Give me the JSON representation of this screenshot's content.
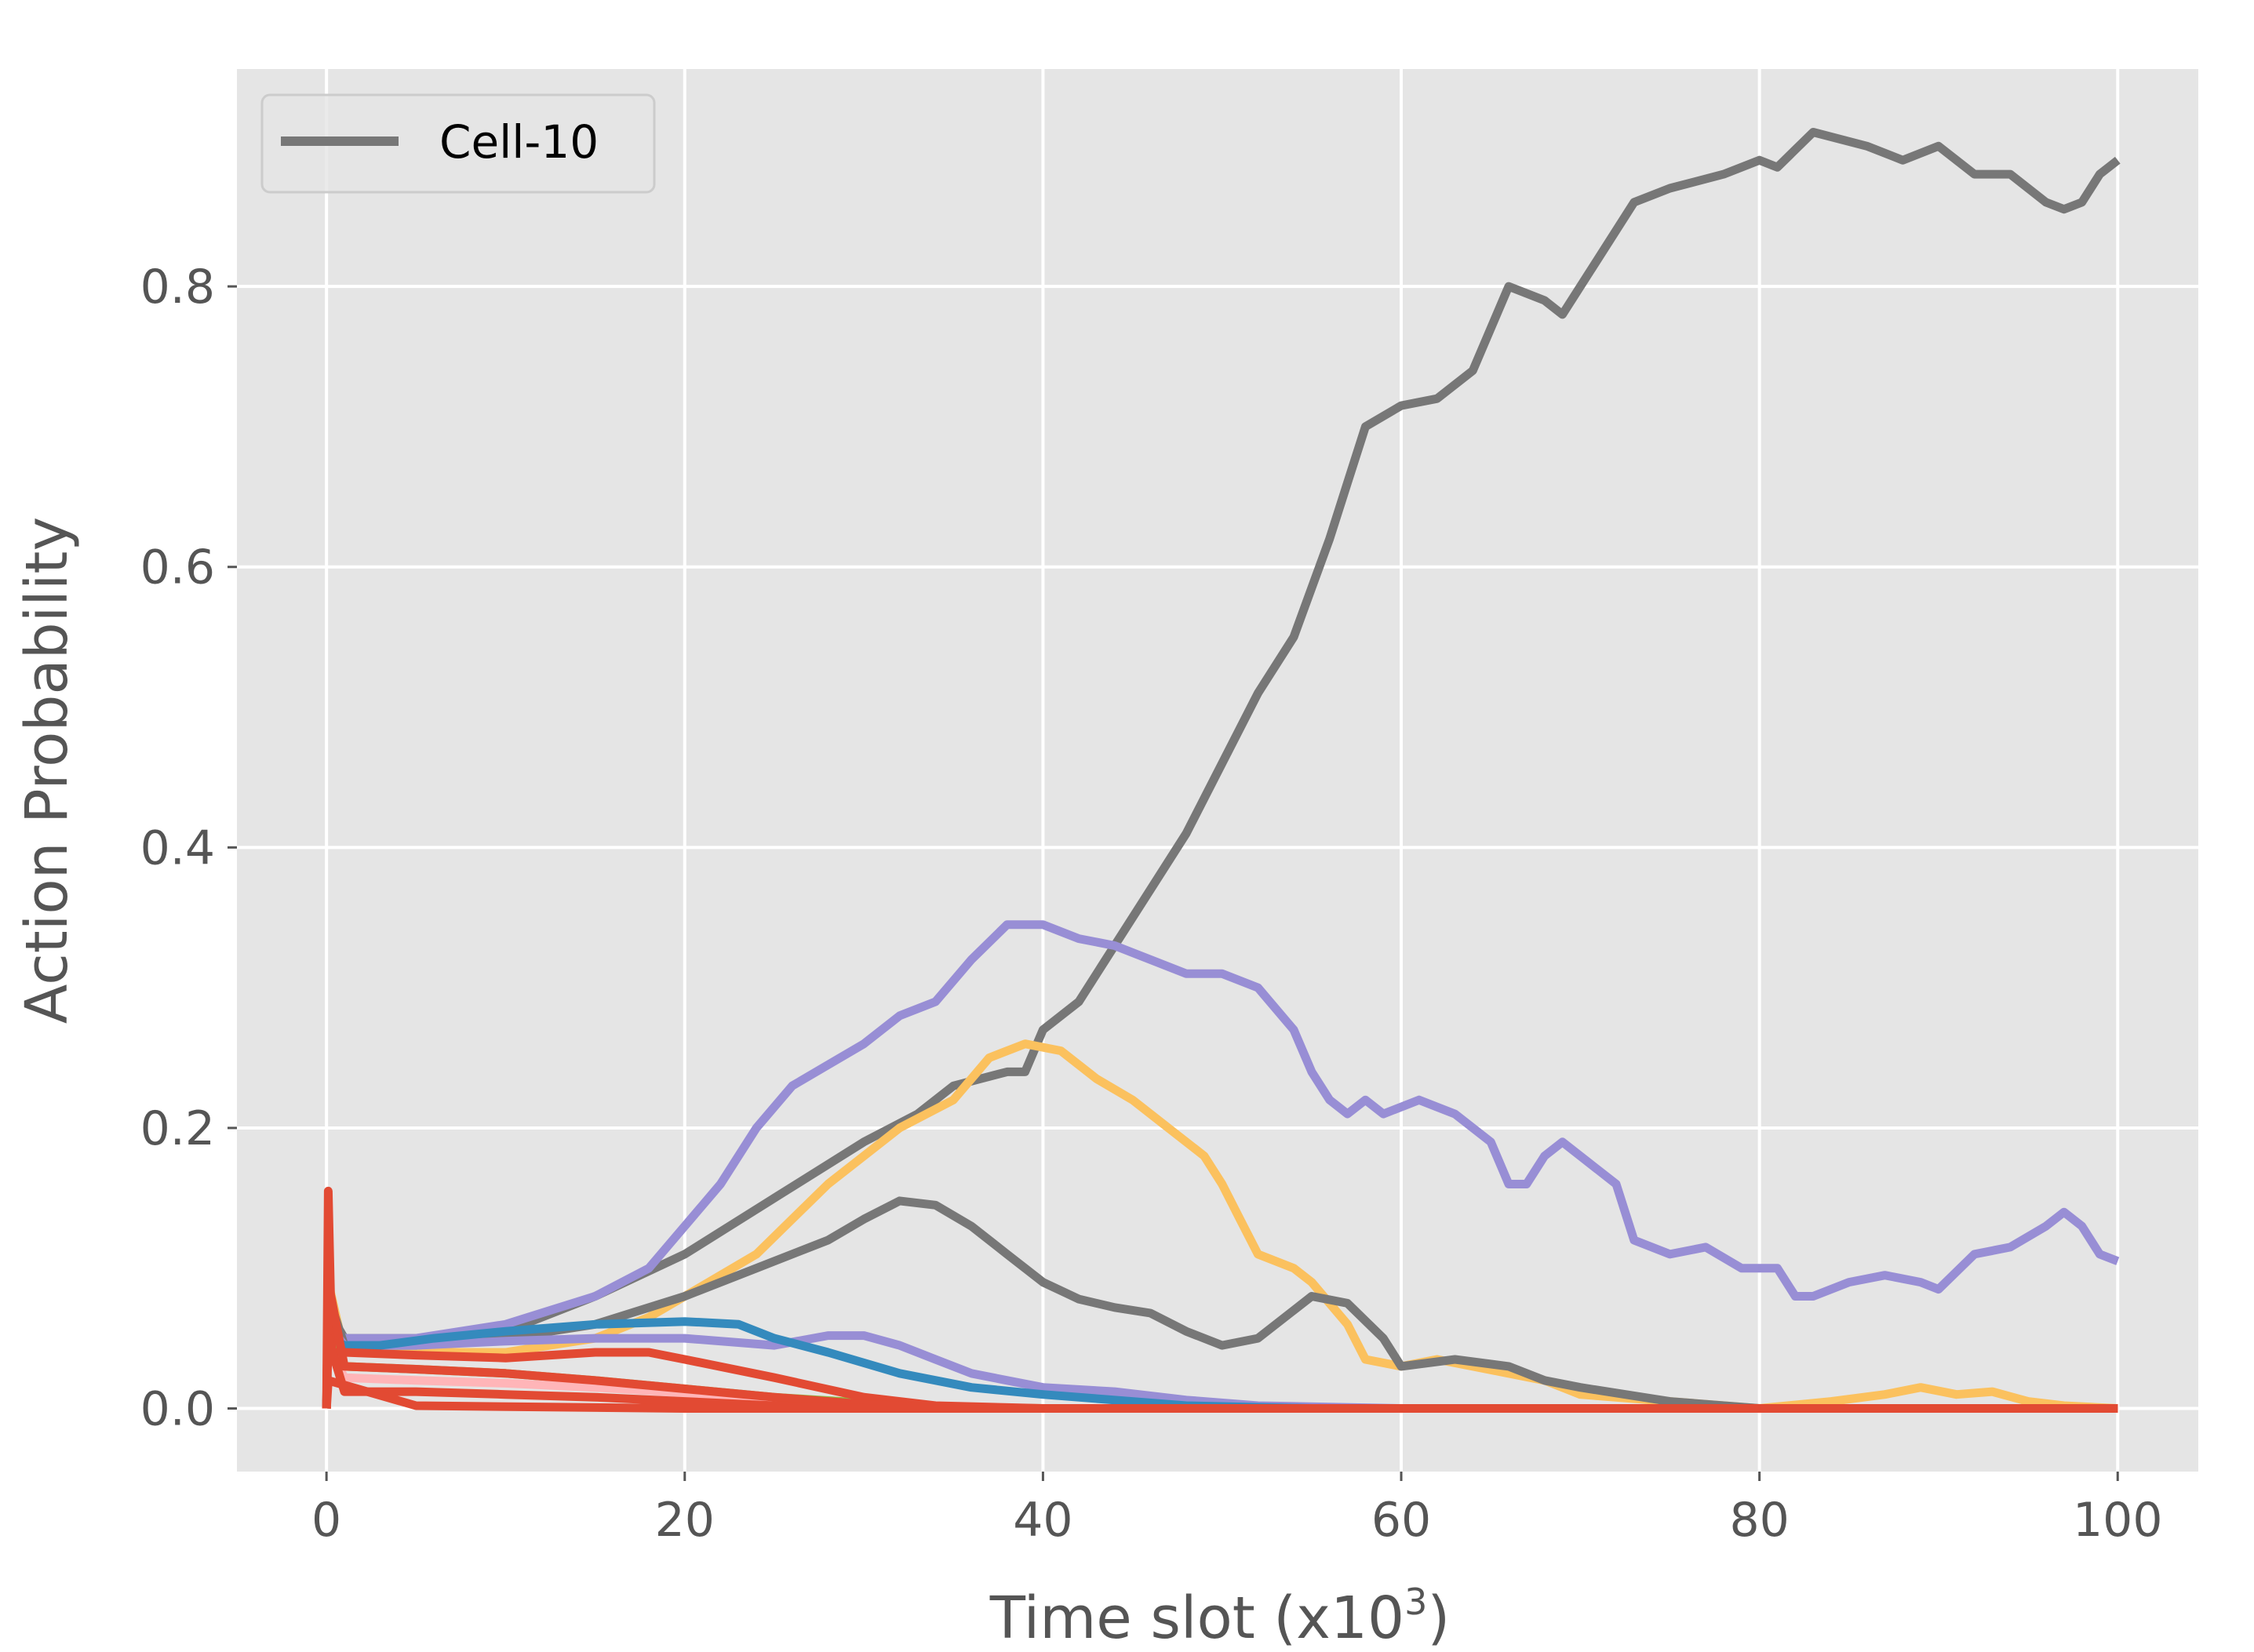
{
  "chart_data": {
    "type": "line",
    "xlabel": "Time slot (x10",
    "xlabel_superscript": "3",
    "xlabel_suffix": ")",
    "ylabel": "Action Probability",
    "xlim": [
      -5,
      104.5
    ],
    "ylim": [
      -0.045,
      0.955
    ],
    "x_ticks": [
      0,
      20,
      40,
      60,
      80,
      100
    ],
    "x_tick_labels": [
      "0",
      "20",
      "40",
      "60",
      "80",
      "100"
    ],
    "y_ticks": [
      0.0,
      0.2,
      0.4,
      0.6,
      0.8
    ],
    "y_tick_labels": [
      "0.0",
      "0.2",
      "0.4",
      "0.6",
      "0.8"
    ],
    "grid": true,
    "style": "ggplot",
    "background_color": "#e5e5e5",
    "grid_color": "#ffffff",
    "legend": {
      "placement": "top-left",
      "entries": [
        "Cell-10"
      ]
    },
    "series": [
      {
        "name": "Cell-10",
        "color": "#777777",
        "points": [
          [
            0,
            0.0
          ],
          [
            0.1,
            0.07
          ],
          [
            1,
            0.05
          ],
          [
            5,
            0.05
          ],
          [
            10,
            0.055
          ],
          [
            15,
            0.08
          ],
          [
            20,
            0.11
          ],
          [
            25,
            0.15
          ],
          [
            30,
            0.19
          ],
          [
            33,
            0.21
          ],
          [
            35,
            0.23
          ],
          [
            38,
            0.24
          ],
          [
            39,
            0.24
          ],
          [
            40,
            0.27
          ],
          [
            42,
            0.29
          ],
          [
            44,
            0.33
          ],
          [
            46,
            0.37
          ],
          [
            48,
            0.41
          ],
          [
            50,
            0.46
          ],
          [
            52,
            0.51
          ],
          [
            54,
            0.55
          ],
          [
            56,
            0.62
          ],
          [
            57,
            0.66
          ],
          [
            58,
            0.7
          ],
          [
            60,
            0.715
          ],
          [
            62,
            0.72
          ],
          [
            64,
            0.74
          ],
          [
            66,
            0.8
          ],
          [
            68,
            0.79
          ],
          [
            69,
            0.78
          ],
          [
            71,
            0.82
          ],
          [
            73,
            0.86
          ],
          [
            75,
            0.87
          ],
          [
            78,
            0.88
          ],
          [
            80,
            0.89
          ],
          [
            81,
            0.885
          ],
          [
            83,
            0.91
          ],
          [
            86,
            0.9
          ],
          [
            88,
            0.89
          ],
          [
            90,
            0.9
          ],
          [
            92,
            0.88
          ],
          [
            94,
            0.88
          ],
          [
            96,
            0.86
          ],
          [
            97,
            0.855
          ],
          [
            98,
            0.86
          ],
          [
            99,
            0.88
          ],
          [
            100,
            0.89
          ]
        ]
      },
      {
        "color": "#988ED5",
        "points": [
          [
            0,
            0.0
          ],
          [
            0.1,
            0.06
          ],
          [
            1,
            0.05
          ],
          [
            5,
            0.05
          ],
          [
            10,
            0.06
          ],
          [
            15,
            0.08
          ],
          [
            18,
            0.1
          ],
          [
            20,
            0.13
          ],
          [
            22,
            0.16
          ],
          [
            24,
            0.2
          ],
          [
            26,
            0.23
          ],
          [
            28,
            0.245
          ],
          [
            30,
            0.26
          ],
          [
            32,
            0.28
          ],
          [
            34,
            0.29
          ],
          [
            36,
            0.32
          ],
          [
            38,
            0.345
          ],
          [
            40,
            0.345
          ],
          [
            42,
            0.335
          ],
          [
            44,
            0.33
          ],
          [
            46,
            0.32
          ],
          [
            48,
            0.31
          ],
          [
            50,
            0.31
          ],
          [
            52,
            0.3
          ],
          [
            54,
            0.27
          ],
          [
            55,
            0.24
          ],
          [
            56,
            0.22
          ],
          [
            57,
            0.21
          ],
          [
            58,
            0.22
          ],
          [
            59,
            0.21
          ],
          [
            61,
            0.22
          ],
          [
            63,
            0.21
          ],
          [
            65,
            0.19
          ],
          [
            66,
            0.16
          ],
          [
            67,
            0.16
          ],
          [
            68,
            0.18
          ],
          [
            69,
            0.19
          ],
          [
            70,
            0.18
          ],
          [
            72,
            0.16
          ],
          [
            73,
            0.12
          ],
          [
            75,
            0.11
          ],
          [
            77,
            0.115
          ],
          [
            79,
            0.1
          ],
          [
            81,
            0.1
          ],
          [
            82,
            0.08
          ],
          [
            83,
            0.08
          ],
          [
            85,
            0.09
          ],
          [
            87,
            0.095
          ],
          [
            89,
            0.09
          ],
          [
            90,
            0.085
          ],
          [
            92,
            0.11
          ],
          [
            94,
            0.115
          ],
          [
            96,
            0.13
          ],
          [
            97,
            0.14
          ],
          [
            98,
            0.13
          ],
          [
            99,
            0.11
          ],
          [
            100,
            0.105
          ]
        ]
      },
      {
        "color": "#FBC15E",
        "points": [
          [
            0,
            0.0
          ],
          [
            0.1,
            0.09
          ],
          [
            1,
            0.04
          ],
          [
            5,
            0.04
          ],
          [
            10,
            0.04
          ],
          [
            15,
            0.05
          ],
          [
            18,
            0.065
          ],
          [
            20,
            0.08
          ],
          [
            24,
            0.11
          ],
          [
            28,
            0.16
          ],
          [
            32,
            0.2
          ],
          [
            35,
            0.22
          ],
          [
            37,
            0.25
          ],
          [
            39,
            0.26
          ],
          [
            41,
            0.255
          ],
          [
            43,
            0.235
          ],
          [
            45,
            0.22
          ],
          [
            47,
            0.2
          ],
          [
            49,
            0.18
          ],
          [
            50,
            0.16
          ],
          [
            51,
            0.135
          ],
          [
            52,
            0.11
          ],
          [
            54,
            0.1
          ],
          [
            55,
            0.09
          ],
          [
            57,
            0.06
          ],
          [
            58,
            0.035
          ],
          [
            60,
            0.03
          ],
          [
            62,
            0.035
          ],
          [
            64,
            0.03
          ],
          [
            66,
            0.025
          ],
          [
            68,
            0.02
          ],
          [
            70,
            0.01
          ],
          [
            75,
            0.005
          ],
          [
            80,
            0.0
          ],
          [
            84,
            0.005
          ],
          [
            87,
            0.01
          ],
          [
            89,
            0.015
          ],
          [
            91,
            0.01
          ],
          [
            93,
            0.012
          ],
          [
            95,
            0.005
          ],
          [
            97,
            0.002
          ],
          [
            100,
            0.0
          ]
        ]
      },
      {
        "color": "#777777",
        "points": [
          [
            0,
            0.0
          ],
          [
            0.1,
            0.08
          ],
          [
            1,
            0.045
          ],
          [
            5,
            0.045
          ],
          [
            10,
            0.05
          ],
          [
            15,
            0.06
          ],
          [
            20,
            0.08
          ],
          [
            24,
            0.1
          ],
          [
            28,
            0.12
          ],
          [
            30,
            0.135
          ],
          [
            32,
            0.148
          ],
          [
            34,
            0.145
          ],
          [
            36,
            0.13
          ],
          [
            38,
            0.11
          ],
          [
            40,
            0.09
          ],
          [
            42,
            0.078
          ],
          [
            44,
            0.072
          ],
          [
            46,
            0.068
          ],
          [
            48,
            0.055
          ],
          [
            50,
            0.045
          ],
          [
            52,
            0.05
          ],
          [
            54,
            0.07
          ],
          [
            55,
            0.08
          ],
          [
            57,
            0.075
          ],
          [
            59,
            0.05
          ],
          [
            60,
            0.03
          ],
          [
            63,
            0.035
          ],
          [
            66,
            0.03
          ],
          [
            68,
            0.02
          ],
          [
            70,
            0.015
          ],
          [
            75,
            0.005
          ],
          [
            80,
            0.0
          ],
          [
            100,
            0.0
          ]
        ]
      },
      {
        "color": "#988ED5",
        "points": [
          [
            0,
            0.0
          ],
          [
            0.1,
            0.06
          ],
          [
            1,
            0.045
          ],
          [
            5,
            0.045
          ],
          [
            10,
            0.048
          ],
          [
            15,
            0.05
          ],
          [
            20,
            0.05
          ],
          [
            25,
            0.045
          ],
          [
            28,
            0.052
          ],
          [
            30,
            0.052
          ],
          [
            32,
            0.045
          ],
          [
            34,
            0.035
          ],
          [
            36,
            0.025
          ],
          [
            38,
            0.02
          ],
          [
            40,
            0.015
          ],
          [
            44,
            0.012
          ],
          [
            48,
            0.006
          ],
          [
            52,
            0.002
          ],
          [
            60,
            0.0
          ],
          [
            100,
            0.0
          ]
        ]
      },
      {
        "color": "#348ABD",
        "points": [
          [
            0,
            0.0
          ],
          [
            0.1,
            0.05
          ],
          [
            1,
            0.045
          ],
          [
            3,
            0.045
          ],
          [
            6,
            0.05
          ],
          [
            10,
            0.055
          ],
          [
            15,
            0.06
          ],
          [
            20,
            0.062
          ],
          [
            23,
            0.06
          ],
          [
            25,
            0.05
          ],
          [
            28,
            0.04
          ],
          [
            32,
            0.025
          ],
          [
            36,
            0.015
          ],
          [
            40,
            0.01
          ],
          [
            44,
            0.006
          ],
          [
            48,
            0.002
          ],
          [
            55,
            0.0
          ],
          [
            100,
            0.0
          ]
        ]
      },
      {
        "color": "#8EBA42",
        "points": [
          [
            0,
            0.0
          ],
          [
            0.1,
            0.055
          ],
          [
            1,
            0.03
          ],
          [
            5,
            0.028
          ],
          [
            10,
            0.025
          ],
          [
            15,
            0.02
          ],
          [
            20,
            0.014
          ],
          [
            25,
            0.008
          ],
          [
            30,
            0.004
          ],
          [
            35,
            0.001
          ],
          [
            40,
            0.0
          ],
          [
            100,
            0.0
          ]
        ]
      },
      {
        "color": "#FFB5B8",
        "points": [
          [
            0,
            0.0
          ],
          [
            0.1,
            0.045
          ],
          [
            1,
            0.022
          ],
          [
            5,
            0.02
          ],
          [
            10,
            0.018
          ],
          [
            15,
            0.015
          ],
          [
            20,
            0.011
          ],
          [
            25,
            0.007
          ],
          [
            30,
            0.003
          ],
          [
            35,
            0.001
          ],
          [
            40,
            0.0
          ],
          [
            100,
            0.0
          ]
        ]
      },
      {
        "color": "#E24A33",
        "points": [
          [
            0,
            0.0
          ],
          [
            0.1,
            0.155
          ],
          [
            0.3,
            0.04
          ],
          [
            1,
            0.04
          ],
          [
            5,
            0.038
          ],
          [
            10,
            0.036
          ],
          [
            15,
            0.04
          ],
          [
            18,
            0.04
          ],
          [
            20,
            0.035
          ],
          [
            25,
            0.022
          ],
          [
            30,
            0.008
          ],
          [
            34,
            0.002
          ],
          [
            40,
            0.0
          ],
          [
            100,
            0.0
          ]
        ]
      },
      {
        "color": "#E24A33",
        "points": [
          [
            0,
            0.0
          ],
          [
            0.1,
            0.09
          ],
          [
            1,
            0.03
          ],
          [
            5,
            0.028
          ],
          [
            10,
            0.025
          ],
          [
            15,
            0.02
          ],
          [
            20,
            0.014
          ],
          [
            25,
            0.008
          ],
          [
            30,
            0.003
          ],
          [
            35,
            0.0
          ],
          [
            100,
            0.0
          ]
        ]
      },
      {
        "color": "#E24A33",
        "points": [
          [
            0,
            0.0
          ],
          [
            0.1,
            0.05
          ],
          [
            1,
            0.012
          ],
          [
            5,
            0.012
          ],
          [
            10,
            0.01
          ],
          [
            15,
            0.008
          ],
          [
            20,
            0.005
          ],
          [
            25,
            0.002
          ],
          [
            30,
            0.0
          ],
          [
            100,
            0.0
          ]
        ]
      },
      {
        "color": "#E24A33",
        "points": [
          [
            0,
            0.0
          ],
          [
            0.1,
            0.02
          ],
          [
            5,
            0.002
          ],
          [
            20,
            0.0
          ],
          [
            100,
            0.0
          ]
        ]
      }
    ]
  }
}
